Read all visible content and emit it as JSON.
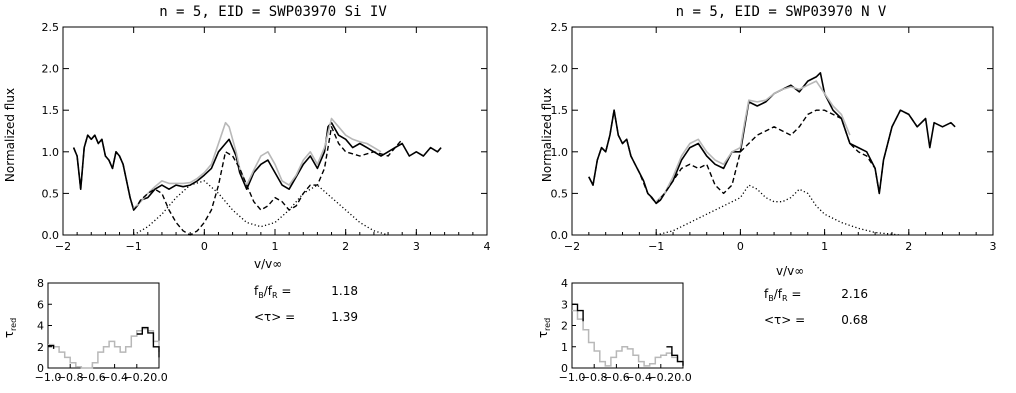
{
  "chart_data": [
    {
      "type": "line",
      "title": "n = 5,  EID = SWP03970  Si IV",
      "xlabel": "v/v∞",
      "ylabel": "Normalized flux",
      "xlim": [
        -2,
        4
      ],
      "ylim": [
        0,
        2.5
      ],
      "xticks": [
        "−2",
        "−1",
        "0",
        "1",
        "2",
        "3",
        "4"
      ],
      "yticks": [
        "0.0",
        "0.5",
        "1.0",
        "1.5",
        "2.0",
        "2.5"
      ],
      "ratio_label": "f",
      "ratio_sub_b": "B",
      "ratio_sep": "/f",
      "ratio_sub_r": "R",
      "ratio_eq": " =",
      "ratio_value": "1.18",
      "tau_label": "<τ> =",
      "tau_value": "1.39",
      "series": [
        {
          "style": "solid-black",
          "x": [
            -1.85,
            -1.8,
            -1.75,
            -1.7,
            -1.65,
            -1.6,
            -1.55,
            -1.5,
            -1.45,
            -1.4,
            -1.35,
            -1.3,
            -1.25,
            -1.2,
            -1.15,
            -1.1,
            -1.05,
            -1.0,
            -0.95,
            -0.9,
            -0.8,
            -0.7,
            -0.6,
            -0.5,
            -0.4,
            -0.3,
            -0.2,
            -0.1,
            0.0,
            0.1,
            0.2,
            0.3,
            0.35,
            0.45,
            0.5,
            0.6,
            0.7,
            0.8,
            0.9,
            1.0,
            1.1,
            1.2,
            1.3,
            1.4,
            1.5,
            1.6,
            1.7,
            1.75,
            1.8,
            1.9,
            2.0,
            2.1,
            2.2,
            2.3,
            2.4,
            2.5,
            2.6,
            2.7,
            2.8,
            2.9,
            3.0,
            3.1,
            3.2,
            3.3,
            3.35
          ],
          "y": [
            1.05,
            0.95,
            0.55,
            1.05,
            1.2,
            1.15,
            1.2,
            1.1,
            1.15,
            0.95,
            0.9,
            0.8,
            1.0,
            0.95,
            0.85,
            0.65,
            0.45,
            0.3,
            0.35,
            0.42,
            0.45,
            0.55,
            0.6,
            0.55,
            0.6,
            0.58,
            0.6,
            0.65,
            0.72,
            0.8,
            1.0,
            1.1,
            1.15,
            0.95,
            0.75,
            0.55,
            0.75,
            0.85,
            0.9,
            0.75,
            0.6,
            0.55,
            0.7,
            0.85,
            0.95,
            0.8,
            1.0,
            1.3,
            1.35,
            1.2,
            1.15,
            1.05,
            1.1,
            1.05,
            1.0,
            0.95,
            1.0,
            1.05,
            1.1,
            0.95,
            1.0,
            0.95,
            1.05,
            1.0,
            1.05
          ]
        },
        {
          "style": "gray",
          "x": [
            -1.0,
            -0.9,
            -0.8,
            -0.7,
            -0.6,
            -0.5,
            -0.4,
            -0.3,
            -0.2,
            -0.1,
            0.0,
            0.1,
            0.2,
            0.3,
            0.35,
            0.45,
            0.5,
            0.6,
            0.7,
            0.8,
            0.9,
            1.0,
            1.1,
            1.2,
            1.3,
            1.4,
            1.5,
            1.6,
            1.7,
            1.8,
            1.9,
            2.0,
            2.1,
            2.2,
            2.3,
            2.4,
            2.5
          ],
          "y": [
            0.32,
            0.4,
            0.5,
            0.58,
            0.65,
            0.62,
            0.62,
            0.62,
            0.63,
            0.68,
            0.75,
            0.85,
            1.1,
            1.35,
            1.3,
            1.0,
            0.8,
            0.6,
            0.78,
            0.95,
            1.0,
            0.85,
            0.65,
            0.6,
            0.72,
            0.9,
            1.0,
            0.85,
            1.05,
            1.4,
            1.3,
            1.2,
            1.15,
            1.12,
            1.1,
            1.05,
            1.0
          ]
        },
        {
          "style": "dashed",
          "x": [
            -1.85,
            -1.8,
            -1.75,
            -1.7,
            -1.65,
            -1.6,
            -1.55,
            -1.5,
            -1.45,
            -1.4,
            -1.35,
            -1.3,
            -1.25,
            -1.2,
            -1.15,
            -1.1,
            -1.05,
            -1.0,
            -0.95,
            -0.9,
            -0.8,
            -0.7,
            -0.6,
            -0.5,
            -0.4,
            -0.3,
            -0.2,
            -0.1,
            0.0,
            0.1,
            0.2,
            0.3,
            0.4,
            0.5,
            0.6,
            0.7,
            0.8,
            0.9,
            1.0,
            1.1,
            1.2,
            1.3,
            1.4,
            1.5,
            1.6,
            1.7,
            1.8,
            1.9,
            2.0,
            2.2,
            2.4,
            2.6,
            2.8
          ],
          "y": [
            1.05,
            0.95,
            0.55,
            1.05,
            1.2,
            1.15,
            1.2,
            1.1,
            1.15,
            0.95,
            0.9,
            0.8,
            1.0,
            0.95,
            0.85,
            0.65,
            0.45,
            0.3,
            0.35,
            0.42,
            0.5,
            0.55,
            0.5,
            0.3,
            0.15,
            0.05,
            0.0,
            0.05,
            0.15,
            0.3,
            0.6,
            1.0,
            0.95,
            0.8,
            0.6,
            0.4,
            0.3,
            0.35,
            0.45,
            0.4,
            0.3,
            0.35,
            0.5,
            0.6,
            0.6,
            0.8,
            1.3,
            1.1,
            1.0,
            0.95,
            1.0,
            0.95,
            1.15
          ]
        },
        {
          "style": "dotted",
          "x": [
            -1.0,
            -0.8,
            -0.6,
            -0.4,
            -0.2,
            0.0,
            0.2,
            0.4,
            0.6,
            0.8,
            1.0,
            1.2,
            1.4,
            1.6,
            1.8,
            2.0,
            2.2,
            2.4,
            2.6
          ],
          "y": [
            0.0,
            0.1,
            0.25,
            0.45,
            0.6,
            0.65,
            0.5,
            0.3,
            0.15,
            0.1,
            0.15,
            0.3,
            0.5,
            0.6,
            0.45,
            0.3,
            0.15,
            0.05,
            0.0
          ]
        }
      ],
      "inset": {
        "ylabel": "τ",
        "ylabel_sub": "red",
        "xlim": [
          -1.0,
          0.0
        ],
        "ylim": [
          0,
          8
        ],
        "xticks": [
          "−1.0",
          "−0.8",
          "−0.6",
          "−0.4",
          "−0.2",
          "0.0"
        ],
        "yticks": [
          "0",
          "2",
          "4",
          "6",
          "8"
        ],
        "gray": [
          [
            -1.0,
            2.2
          ],
          [
            -0.95,
            2.0
          ],
          [
            -0.9,
            1.5
          ],
          [
            -0.85,
            1.0
          ],
          [
            -0.8,
            0.5
          ],
          [
            -0.75,
            0.1
          ],
          [
            -0.7,
            0.0
          ],
          [
            -0.65,
            0.0
          ],
          [
            -0.6,
            0.5
          ],
          [
            -0.55,
            1.5
          ],
          [
            -0.5,
            2.0
          ],
          [
            -0.45,
            2.5
          ],
          [
            -0.4,
            2.0
          ],
          [
            -0.35,
            1.5
          ],
          [
            -0.3,
            2.0
          ],
          [
            -0.25,
            3.0
          ],
          [
            -0.2,
            3.5
          ],
          [
            -0.15,
            3.7
          ],
          [
            -0.1,
            3.5
          ],
          [
            -0.05,
            2.5
          ],
          [
            0.0,
            1.5
          ]
        ],
        "black": [
          [
            -1.0,
            2.1
          ],
          [
            -0.95,
            1.8
          ],
          [
            -0.2,
            3.2
          ],
          [
            -0.15,
            3.8
          ],
          [
            -0.1,
            3.3
          ],
          [
            -0.05,
            2.0
          ],
          [
            0.0,
            1.0
          ]
        ]
      }
    },
    {
      "type": "line",
      "title": "n = 5,  EID = SWP03970  N V",
      "xlabel": "v/v∞",
      "ylabel": "Normalized flux",
      "xlim": [
        -2,
        3
      ],
      "ylim": [
        0,
        2.5
      ],
      "xticks": [
        "−2",
        "−1",
        "0",
        "1",
        "2",
        "3"
      ],
      "yticks": [
        "0.0",
        "0.5",
        "1.0",
        "1.5",
        "2.0",
        "2.5"
      ],
      "ratio_label": "f",
      "ratio_sub_b": "B",
      "ratio_sep": "/f",
      "ratio_sub_r": "R",
      "ratio_eq": " =",
      "ratio_value": "2.16",
      "tau_label": "<τ> =",
      "tau_value": "0.68",
      "series": [
        {
          "style": "solid-black",
          "x": [
            -1.8,
            -1.75,
            -1.7,
            -1.65,
            -1.6,
            -1.55,
            -1.5,
            -1.45,
            -1.4,
            -1.35,
            -1.3,
            -1.25,
            -1.2,
            -1.15,
            -1.1,
            -1.05,
            -1.0,
            -0.95,
            -0.9,
            -0.8,
            -0.7,
            -0.6,
            -0.5,
            -0.4,
            -0.3,
            -0.2,
            -0.1,
            0.0,
            0.05,
            0.1,
            0.2,
            0.3,
            0.4,
            0.5,
            0.6,
            0.7,
            0.8,
            0.9,
            0.95,
            1.0,
            1.1,
            1.2,
            1.3,
            1.4,
            1.5,
            1.6,
            1.65,
            1.7,
            1.8,
            1.9,
            2.0,
            2.1,
            2.2,
            2.25,
            2.3,
            2.4,
            2.5,
            2.55
          ],
          "y": [
            0.7,
            0.6,
            0.9,
            1.05,
            1.0,
            1.2,
            1.5,
            1.2,
            1.1,
            1.15,
            0.95,
            0.85,
            0.75,
            0.65,
            0.5,
            0.45,
            0.38,
            0.42,
            0.5,
            0.65,
            0.9,
            1.05,
            1.1,
            0.95,
            0.85,
            0.8,
            1.0,
            1.0,
            1.3,
            1.6,
            1.55,
            1.6,
            1.7,
            1.75,
            1.8,
            1.72,
            1.85,
            1.9,
            1.95,
            1.7,
            1.5,
            1.4,
            1.1,
            1.05,
            1.0,
            0.8,
            0.5,
            0.9,
            1.3,
            1.5,
            1.45,
            1.3,
            1.4,
            1.05,
            1.35,
            1.3,
            1.35,
            1.3
          ]
        },
        {
          "style": "gray",
          "x": [
            -1.0,
            -0.9,
            -0.8,
            -0.7,
            -0.6,
            -0.5,
            -0.4,
            -0.3,
            -0.2,
            -0.1,
            0.0,
            0.05,
            0.1,
            0.2,
            0.3,
            0.4,
            0.5,
            0.6,
            0.7,
            0.8,
            0.9,
            1.0,
            1.1,
            1.2,
            1.3
          ],
          "y": [
            0.4,
            0.5,
            0.7,
            0.95,
            1.1,
            1.15,
            1.0,
            0.9,
            0.85,
            1.0,
            1.05,
            1.35,
            1.62,
            1.6,
            1.62,
            1.7,
            1.75,
            1.78,
            1.75,
            1.8,
            1.85,
            1.7,
            1.55,
            1.45,
            1.2
          ]
        },
        {
          "style": "dashed",
          "x": [
            -1.8,
            -1.75,
            -1.7,
            -1.65,
            -1.6,
            -1.55,
            -1.5,
            -1.45,
            -1.4,
            -1.35,
            -1.3,
            -1.25,
            -1.2,
            -1.1,
            -1.0,
            -0.9,
            -0.8,
            -0.7,
            -0.6,
            -0.5,
            -0.4,
            -0.3,
            -0.2,
            -0.1,
            0.0,
            0.1,
            0.2,
            0.3,
            0.4,
            0.5,
            0.6,
            0.7,
            0.8,
            0.9,
            1.0,
            1.1,
            1.2,
            1.3,
            1.4,
            1.5,
            1.6,
            1.65,
            1.7,
            1.8,
            1.9,
            2.0,
            2.1
          ],
          "y": [
            0.7,
            0.6,
            0.9,
            1.05,
            1.0,
            1.2,
            1.5,
            1.2,
            1.1,
            1.15,
            0.95,
            0.85,
            0.75,
            0.5,
            0.38,
            0.5,
            0.65,
            0.8,
            0.85,
            0.8,
            0.85,
            0.6,
            0.5,
            0.6,
            1.0,
            1.1,
            1.2,
            1.25,
            1.3,
            1.25,
            1.2,
            1.3,
            1.45,
            1.5,
            1.5,
            1.45,
            1.4,
            1.1,
            1.0,
            0.95,
            0.8,
            0.5,
            0.9,
            1.3,
            1.5,
            1.45,
            1.3
          ]
        },
        {
          "style": "dotted",
          "x": [
            -1.0,
            -0.8,
            -0.6,
            -0.4,
            -0.2,
            0.0,
            0.1,
            0.2,
            0.3,
            0.4,
            0.5,
            0.6,
            0.7,
            0.8,
            0.9,
            1.0,
            1.2,
            1.4,
            1.6,
            1.8,
            1.9
          ],
          "y": [
            0.0,
            0.05,
            0.15,
            0.25,
            0.35,
            0.45,
            0.6,
            0.55,
            0.45,
            0.4,
            0.4,
            0.45,
            0.55,
            0.5,
            0.35,
            0.25,
            0.15,
            0.08,
            0.03,
            0.01,
            0.0
          ]
        }
      ],
      "inset": {
        "ylabel": "τ",
        "ylabel_sub": "red",
        "xlim": [
          -1.0,
          0.0
        ],
        "ylim": [
          0,
          4
        ],
        "xticks": [
          "−1.0",
          "−0.8",
          "−0.6",
          "−0.4",
          "−0.2",
          "0.0"
        ],
        "yticks": [
          "0",
          "1",
          "2",
          "3",
          "4"
        ],
        "gray": [
          [
            -1.0,
            2.7
          ],
          [
            -0.95,
            2.3
          ],
          [
            -0.9,
            1.8
          ],
          [
            -0.85,
            1.2
          ],
          [
            -0.8,
            0.8
          ],
          [
            -0.75,
            0.3
          ],
          [
            -0.7,
            0.1
          ],
          [
            -0.65,
            0.5
          ],
          [
            -0.6,
            0.8
          ],
          [
            -0.55,
            1.0
          ],
          [
            -0.5,
            0.9
          ],
          [
            -0.45,
            0.6
          ],
          [
            -0.4,
            0.3
          ],
          [
            -0.35,
            0.1
          ],
          [
            -0.3,
            0.2
          ],
          [
            -0.25,
            0.5
          ],
          [
            -0.2,
            0.6
          ],
          [
            -0.15,
            0.7
          ],
          [
            -0.1,
            0.5
          ],
          [
            -0.05,
            0.3
          ],
          [
            0.0,
            0.1
          ]
        ],
        "black": [
          [
            -1.0,
            3.0
          ],
          [
            -0.95,
            2.7
          ],
          [
            -0.9,
            2.2
          ],
          [
            -0.15,
            1.0
          ],
          [
            -0.1,
            0.6
          ],
          [
            -0.05,
            0.3
          ],
          [
            0.0,
            0.1
          ]
        ]
      }
    }
  ]
}
